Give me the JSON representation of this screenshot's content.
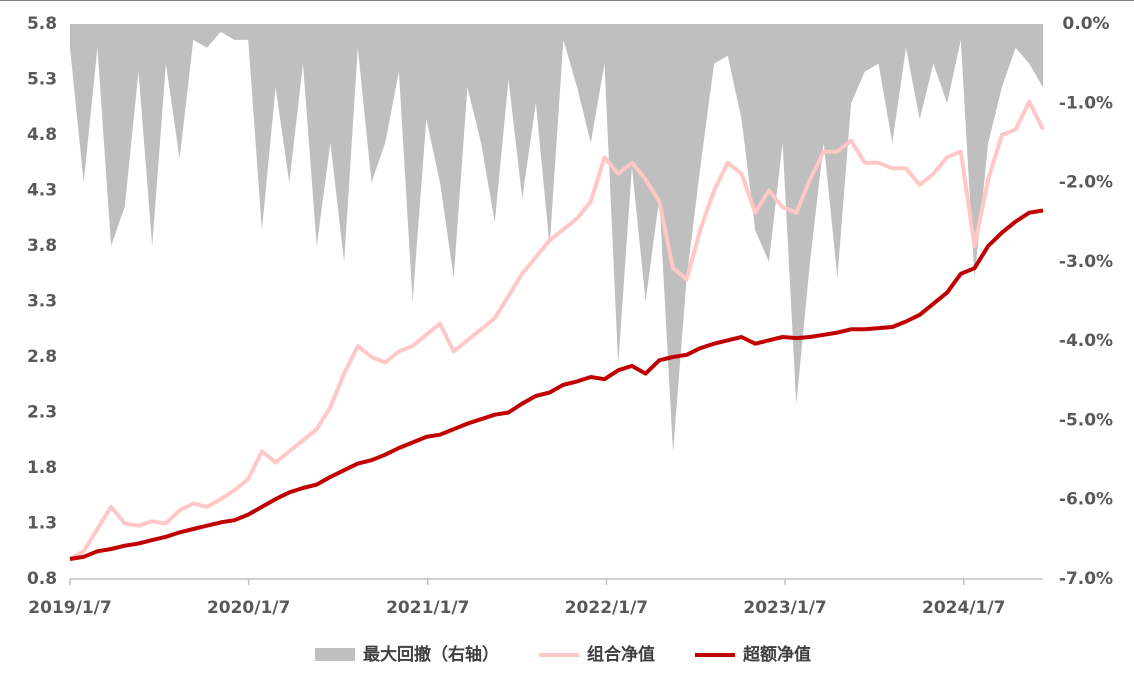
{
  "chart_data": {
    "type": "line",
    "x": [
      "2019/1/7",
      "2019/2/4",
      "2019/3/4",
      "2019/4/1",
      "2019/4/29",
      "2019/5/27",
      "2019/6/24",
      "2019/7/22",
      "2019/8/19",
      "2019/9/16",
      "2019/10/14",
      "2019/11/11",
      "2019/12/9",
      "2020/1/6",
      "2020/2/3",
      "2020/3/2",
      "2020/3/30",
      "2020/4/27",
      "2020/5/25",
      "2020/6/22",
      "2020/7/20",
      "2020/8/17",
      "2020/9/14",
      "2020/10/12",
      "2020/11/9",
      "2020/12/7",
      "2021/1/4",
      "2021/2/1",
      "2021/3/1",
      "2021/3/29",
      "2021/4/26",
      "2021/5/24",
      "2021/6/21",
      "2021/7/19",
      "2021/8/16",
      "2021/9/13",
      "2021/10/11",
      "2021/11/8",
      "2021/12/6",
      "2022/1/3",
      "2022/1/31",
      "2022/2/28",
      "2022/3/28",
      "2022/4/25",
      "2022/5/23",
      "2022/6/20",
      "2022/7/18",
      "2022/8/15",
      "2022/9/12",
      "2022/10/10",
      "2022/11/7",
      "2022/12/5",
      "2023/1/2",
      "2023/1/30",
      "2023/2/27",
      "2023/3/27",
      "2023/4/24",
      "2023/5/22",
      "2023/6/19",
      "2023/7/17",
      "2023/8/14",
      "2023/9/11",
      "2023/10/9",
      "2023/11/6",
      "2023/12/4",
      "2024/1/1",
      "2024/1/29",
      "2024/2/26",
      "2024/3/25",
      "2024/4/22",
      "2024/5/20",
      "2024/6/17"
    ],
    "xlim": [
      "2019/1/7",
      "2024/6/17"
    ],
    "xticks": [
      "2019/1/7",
      "2020/1/7",
      "2021/1/7",
      "2022/1/7",
      "2023/1/7",
      "2024/1/7"
    ],
    "ylim": [
      0.8,
      5.8
    ],
    "yticks": [
      0.8,
      1.3,
      1.8,
      2.3,
      2.8,
      3.3,
      3.8,
      4.3,
      4.8,
      5.3,
      5.8
    ],
    "y2lim": [
      -7,
      0
    ],
    "y2ticks": [
      {
        "value": -7,
        "label": "-7.0%"
      },
      {
        "value": -6,
        "label": "-6.0%"
      },
      {
        "value": -5,
        "label": "-5.0%"
      },
      {
        "value": -4,
        "label": "-4.0%"
      },
      {
        "value": -3,
        "label": "-3.0%"
      },
      {
        "value": -2,
        "label": "-2.0%"
      },
      {
        "value": -1,
        "label": "-1.0%"
      },
      {
        "value": 0,
        "label": "0.0%"
      }
    ],
    "series": [
      {
        "name": "最大回撤（右轴）",
        "type": "area",
        "axis": "y2",
        "color": "#bfbfbf",
        "values": [
          -0.3,
          -2.0,
          -0.3,
          -2.8,
          -2.3,
          -0.6,
          -2.8,
          -0.5,
          -1.7,
          -0.2,
          -0.3,
          -0.1,
          -0.2,
          -0.2,
          -2.6,
          -0.8,
          -2.0,
          -0.5,
          -2.8,
          -1.5,
          -3.0,
          -0.3,
          -2.0,
          -1.5,
          -0.6,
          -3.5,
          -1.2,
          -2.0,
          -3.2,
          -0.8,
          -1.5,
          -2.5,
          -0.7,
          -2.2,
          -1.0,
          -2.8,
          -0.2,
          -0.8,
          -1.5,
          -0.5,
          -4.3,
          -1.8,
          -3.5,
          -2.2,
          -5.4,
          -3.2,
          -1.8,
          -0.5,
          -0.4,
          -1.2,
          -2.6,
          -3.0,
          -1.5,
          -4.8,
          -3.0,
          -1.5,
          -3.2,
          -1.0,
          -0.6,
          -0.5,
          -1.5,
          -0.3,
          -1.2,
          -0.5,
          -1.0,
          -0.2,
          -3.2,
          -1.5,
          -0.8,
          -0.3,
          -0.5,
          -0.8
        ]
      },
      {
        "name": "组合净值",
        "type": "line",
        "color": "#ffc7c7",
        "values": [
          0.98,
          1.05,
          1.25,
          1.45,
          1.3,
          1.28,
          1.32,
          1.3,
          1.42,
          1.48,
          1.45,
          1.52,
          1.6,
          1.7,
          1.95,
          1.85,
          1.95,
          2.05,
          2.15,
          2.35,
          2.65,
          2.9,
          2.8,
          2.75,
          2.85,
          2.9,
          3.0,
          3.1,
          2.85,
          2.95,
          3.05,
          3.15,
          3.35,
          3.55,
          3.7,
          3.85,
          3.95,
          4.05,
          4.2,
          4.6,
          4.45,
          4.55,
          4.4,
          4.2,
          3.6,
          3.5,
          3.95,
          4.3,
          4.55,
          4.45,
          4.1,
          4.3,
          4.15,
          4.1,
          4.4,
          4.65,
          4.65,
          4.75,
          4.55,
          4.55,
          4.5,
          4.5,
          4.35,
          4.45,
          4.6,
          4.65,
          3.8,
          4.4,
          4.8,
          4.85,
          5.1,
          4.85
        ]
      },
      {
        "name": "超额净值",
        "type": "line",
        "color": "#c00000",
        "values": [
          0.98,
          1.0,
          1.05,
          1.07,
          1.1,
          1.12,
          1.15,
          1.18,
          1.22,
          1.25,
          1.28,
          1.31,
          1.33,
          1.38,
          1.45,
          1.52,
          1.58,
          1.62,
          1.65,
          1.72,
          1.78,
          1.84,
          1.87,
          1.92,
          1.98,
          2.03,
          2.08,
          2.1,
          2.15,
          2.2,
          2.24,
          2.28,
          2.3,
          2.38,
          2.45,
          2.48,
          2.55,
          2.58,
          2.62,
          2.6,
          2.68,
          2.72,
          2.65,
          2.77,
          2.8,
          2.82,
          2.88,
          2.92,
          2.95,
          2.98,
          2.92,
          2.95,
          2.98,
          2.97,
          2.98,
          3.0,
          3.02,
          3.05,
          3.05,
          3.06,
          3.07,
          3.12,
          3.18,
          3.28,
          3.38,
          3.55,
          3.6,
          3.8,
          3.92,
          4.02,
          4.1,
          4.12
        ]
      }
    ]
  }
}
